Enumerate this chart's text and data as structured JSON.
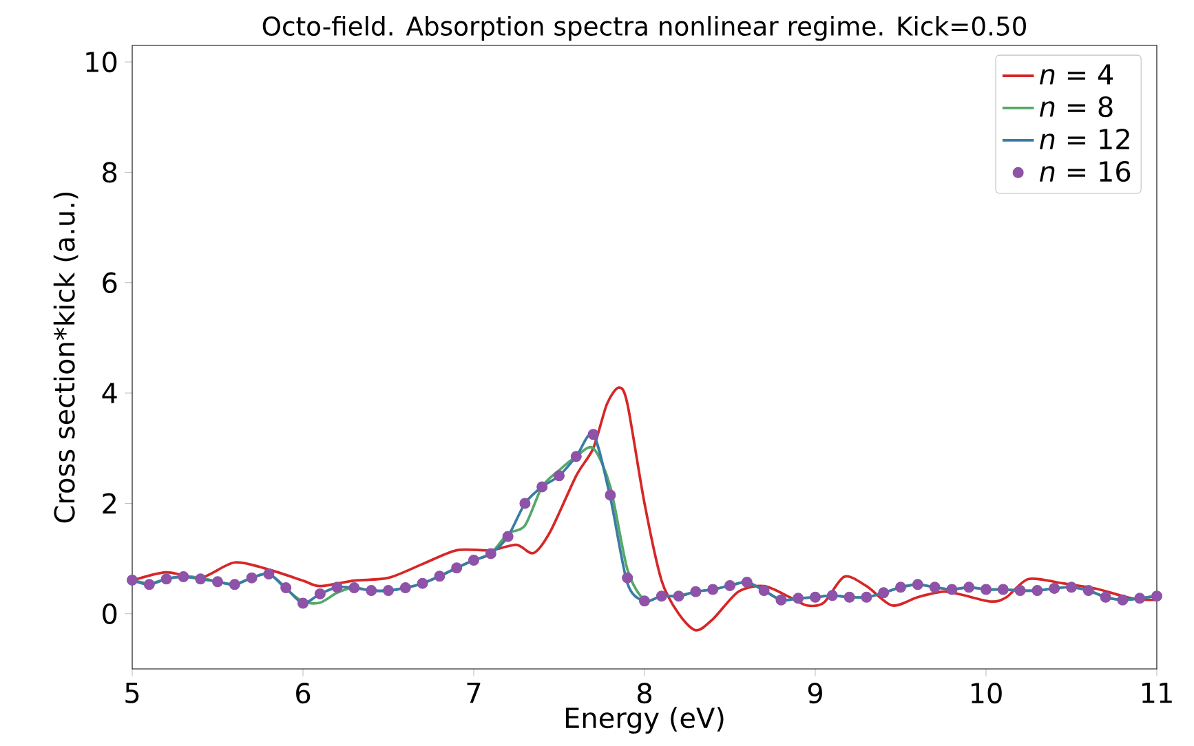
{
  "chart_data": {
    "type": "line",
    "title": "Octo-field. Absorption spectra nonlinear regime. Kick=0.50",
    "xlabel": "Energy (eV)",
    "ylabel": "Cross section*kick (a.u.)",
    "xlim": [
      5,
      11
    ],
    "ylim": [
      -1.0,
      10.3
    ],
    "xticks": [
      5,
      6,
      7,
      8,
      9,
      10,
      11
    ],
    "yticks": [
      0,
      2,
      4,
      6,
      8,
      10
    ],
    "legend": "top right",
    "series": [
      {
        "name": "*n* = 4",
        "color": "#d62728",
        "x": [
          5.0,
          5.2,
          5.4,
          5.6,
          5.8,
          6.0,
          6.1,
          6.3,
          6.5,
          6.7,
          6.9,
          7.1,
          7.25,
          7.35,
          7.45,
          7.6,
          7.7,
          7.78,
          7.85,
          7.9,
          8.0,
          8.1,
          8.2,
          8.3,
          8.4,
          8.55,
          8.7,
          8.85,
          8.95,
          9.05,
          9.17,
          9.3,
          9.45,
          9.6,
          9.75,
          9.85,
          10.03,
          10.12,
          10.25,
          10.45,
          10.65,
          10.85,
          11.0
        ],
        "values": [
          0.6,
          0.75,
          0.65,
          0.93,
          0.8,
          0.6,
          0.5,
          0.6,
          0.65,
          0.9,
          1.15,
          1.15,
          1.25,
          1.1,
          1.5,
          2.5,
          3.0,
          3.8,
          4.1,
          3.8,
          2.0,
          0.6,
          0.0,
          -0.3,
          -0.1,
          0.4,
          0.5,
          0.3,
          0.15,
          0.2,
          0.67,
          0.5,
          0.15,
          0.3,
          0.4,
          0.35,
          0.22,
          0.3,
          0.63,
          0.55,
          0.45,
          0.28,
          0.25
        ]
      },
      {
        "name": "*n* = 8",
        "color": "#55a868",
        "x": [
          5.0,
          5.1,
          5.2,
          5.3,
          5.4,
          5.5,
          5.6,
          5.7,
          5.8,
          5.9,
          6.0,
          6.1,
          6.2,
          6.3,
          6.4,
          6.5,
          6.6,
          6.7,
          6.8,
          6.9,
          7.0,
          7.1,
          7.2,
          7.3,
          7.4,
          7.5,
          7.6,
          7.7,
          7.8,
          7.9,
          8.0,
          8.1,
          8.2,
          8.3,
          8.4,
          8.5,
          8.6,
          8.7,
          8.8,
          8.9,
          9.0,
          9.1,
          9.2,
          9.3,
          9.4,
          9.5,
          9.6,
          9.7,
          9.8,
          9.9,
          10.0,
          10.1,
          10.2,
          10.3,
          10.4,
          10.5,
          10.6,
          10.7,
          10.8,
          10.9,
          11.0
        ],
        "values": [
          0.61,
          0.55,
          0.63,
          0.68,
          0.65,
          0.58,
          0.53,
          0.65,
          0.72,
          0.45,
          0.22,
          0.2,
          0.38,
          0.47,
          0.42,
          0.42,
          0.47,
          0.55,
          0.68,
          0.83,
          0.97,
          1.09,
          1.45,
          1.6,
          2.3,
          2.6,
          2.85,
          3.0,
          2.3,
          0.8,
          0.25,
          0.32,
          0.32,
          0.4,
          0.44,
          0.51,
          0.57,
          0.42,
          0.25,
          0.28,
          0.3,
          0.33,
          0.3,
          0.3,
          0.38,
          0.48,
          0.53,
          0.48,
          0.44,
          0.48,
          0.44,
          0.44,
          0.42,
          0.42,
          0.46,
          0.48,
          0.42,
          0.3,
          0.25,
          0.28,
          0.32
        ]
      },
      {
        "name": "*n* = 12",
        "color": "#3a7ca5",
        "x": [
          5.0,
          5.1,
          5.2,
          5.3,
          5.4,
          5.5,
          5.6,
          5.7,
          5.8,
          5.9,
          6.0,
          6.1,
          6.2,
          6.3,
          6.4,
          6.5,
          6.6,
          6.7,
          6.8,
          6.9,
          7.0,
          7.1,
          7.2,
          7.3,
          7.4,
          7.5,
          7.6,
          7.7,
          7.8,
          7.9,
          8.0,
          8.1,
          8.2,
          8.3,
          8.4,
          8.5,
          8.6,
          8.7,
          8.8,
          8.9,
          9.0,
          9.1,
          9.2,
          9.3,
          9.4,
          9.5,
          9.6,
          9.7,
          9.8,
          9.9,
          10.0,
          10.1,
          10.2,
          10.3,
          10.4,
          10.5,
          10.6,
          10.7,
          10.8,
          10.9,
          11.0
        ],
        "values": [
          0.61,
          0.53,
          0.63,
          0.67,
          0.63,
          0.58,
          0.53,
          0.65,
          0.72,
          0.47,
          0.19,
          0.36,
          0.48,
          0.47,
          0.42,
          0.42,
          0.47,
          0.55,
          0.68,
          0.83,
          0.97,
          1.09,
          1.4,
          2.0,
          2.3,
          2.5,
          2.85,
          3.25,
          2.1,
          0.55,
          0.23,
          0.32,
          0.32,
          0.4,
          0.44,
          0.51,
          0.57,
          0.42,
          0.25,
          0.28,
          0.3,
          0.33,
          0.3,
          0.3,
          0.38,
          0.48,
          0.53,
          0.48,
          0.44,
          0.48,
          0.44,
          0.44,
          0.42,
          0.42,
          0.46,
          0.48,
          0.42,
          0.3,
          0.25,
          0.28,
          0.32
        ]
      },
      {
        "name": "*n* = 16",
        "type": "scatter",
        "marker": "circle",
        "color": "#8e52a8",
        "x": [
          5.0,
          5.1,
          5.2,
          5.3,
          5.4,
          5.5,
          5.6,
          5.7,
          5.8,
          5.9,
          6.0,
          6.1,
          6.2,
          6.3,
          6.4,
          6.5,
          6.6,
          6.7,
          6.8,
          6.9,
          7.0,
          7.1,
          7.2,
          7.3,
          7.4,
          7.5,
          7.6,
          7.7,
          7.8,
          7.9,
          8.0,
          8.1,
          8.2,
          8.3,
          8.4,
          8.5,
          8.6,
          8.7,
          8.8,
          8.9,
          9.0,
          9.1,
          9.2,
          9.3,
          9.4,
          9.5,
          9.6,
          9.7,
          9.8,
          9.9,
          10.0,
          10.1,
          10.2,
          10.3,
          10.4,
          10.5,
          10.6,
          10.7,
          10.8,
          10.9,
          11.0
        ],
        "values": [
          0.61,
          0.53,
          0.63,
          0.67,
          0.63,
          0.58,
          0.53,
          0.65,
          0.72,
          0.47,
          0.19,
          0.36,
          0.48,
          0.47,
          0.42,
          0.42,
          0.47,
          0.55,
          0.68,
          0.83,
          0.97,
          1.09,
          1.4,
          2.0,
          2.3,
          2.5,
          2.85,
          3.25,
          2.15,
          0.65,
          0.23,
          0.32,
          0.32,
          0.4,
          0.44,
          0.51,
          0.57,
          0.42,
          0.25,
          0.28,
          0.3,
          0.33,
          0.3,
          0.3,
          0.38,
          0.48,
          0.53,
          0.48,
          0.44,
          0.48,
          0.44,
          0.44,
          0.42,
          0.42,
          0.46,
          0.48,
          0.42,
          0.3,
          0.25,
          0.28,
          0.32
        ]
      }
    ]
  }
}
